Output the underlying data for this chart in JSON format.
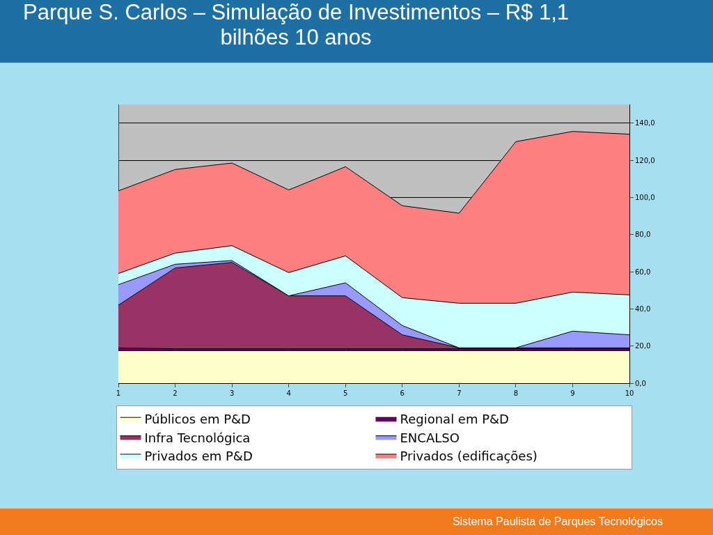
{
  "chart_data": {
    "type": "area",
    "title": "Parque S. Carlos – Simulação de Investimentos – R$ 1,1 bilhões 10 anos",
    "categories": [
      "1",
      "2",
      "3",
      "4",
      "5",
      "6",
      "7",
      "8",
      "9",
      "10"
    ],
    "stacked": true,
    "series": [
      {
        "name": "Públicos em P&D",
        "color": "#ffffcc",
        "values": [
          17.5,
          17.5,
          17.5,
          17.5,
          17.5,
          17.5,
          17.5,
          17.5,
          17.5,
          17.5
        ]
      },
      {
        "name": "Regional em P&D",
        "color": "#660066",
        "values": [
          1.5,
          1,
          1,
          1,
          1,
          1,
          1,
          1,
          1,
          1
        ]
      },
      {
        "name": "Infra Tecnológica",
        "color": "#993366",
        "values": [
          23,
          43.5,
          46.5,
          28.5,
          28.5,
          7.5,
          0.5,
          0.5,
          0.5,
          0.5
        ]
      },
      {
        "name": "ENCALSO",
        "color": "#9999ff",
        "values": [
          11,
          2,
          1,
          0,
          7,
          5,
          0,
          0,
          9,
          7
        ]
      },
      {
        "name": "Privados em P&D",
        "color": "#ccffff",
        "values": [
          6,
          6,
          8,
          12.5,
          14.5,
          15,
          24,
          24,
          21,
          21.5
        ]
      },
      {
        "name": "Privados (edificações)",
        "color": "#ff8080",
        "values": [
          44.5,
          45,
          44.5,
          44.5,
          48,
          49.5,
          48.5,
          87,
          86.5,
          86.5
        ]
      }
    ],
    "ylim": [
      0,
      150
    ],
    "yticks": [
      {
        "value": 0,
        "label": "0,0"
      },
      {
        "value": 20,
        "label": "20,0"
      },
      {
        "value": 40,
        "label": "40,0"
      },
      {
        "value": 60,
        "label": "60,0"
      },
      {
        "value": 80,
        "label": "80,0"
      },
      {
        "value": 100,
        "label": "100,0"
      },
      {
        "value": 120,
        "label": "120,0"
      },
      {
        "value": 140,
        "label": "140,0"
      }
    ],
    "grid": "y",
    "legend": "bottom",
    "annotations": [
      "Sistema Paulista de Parques Tecnológicos"
    ]
  }
}
